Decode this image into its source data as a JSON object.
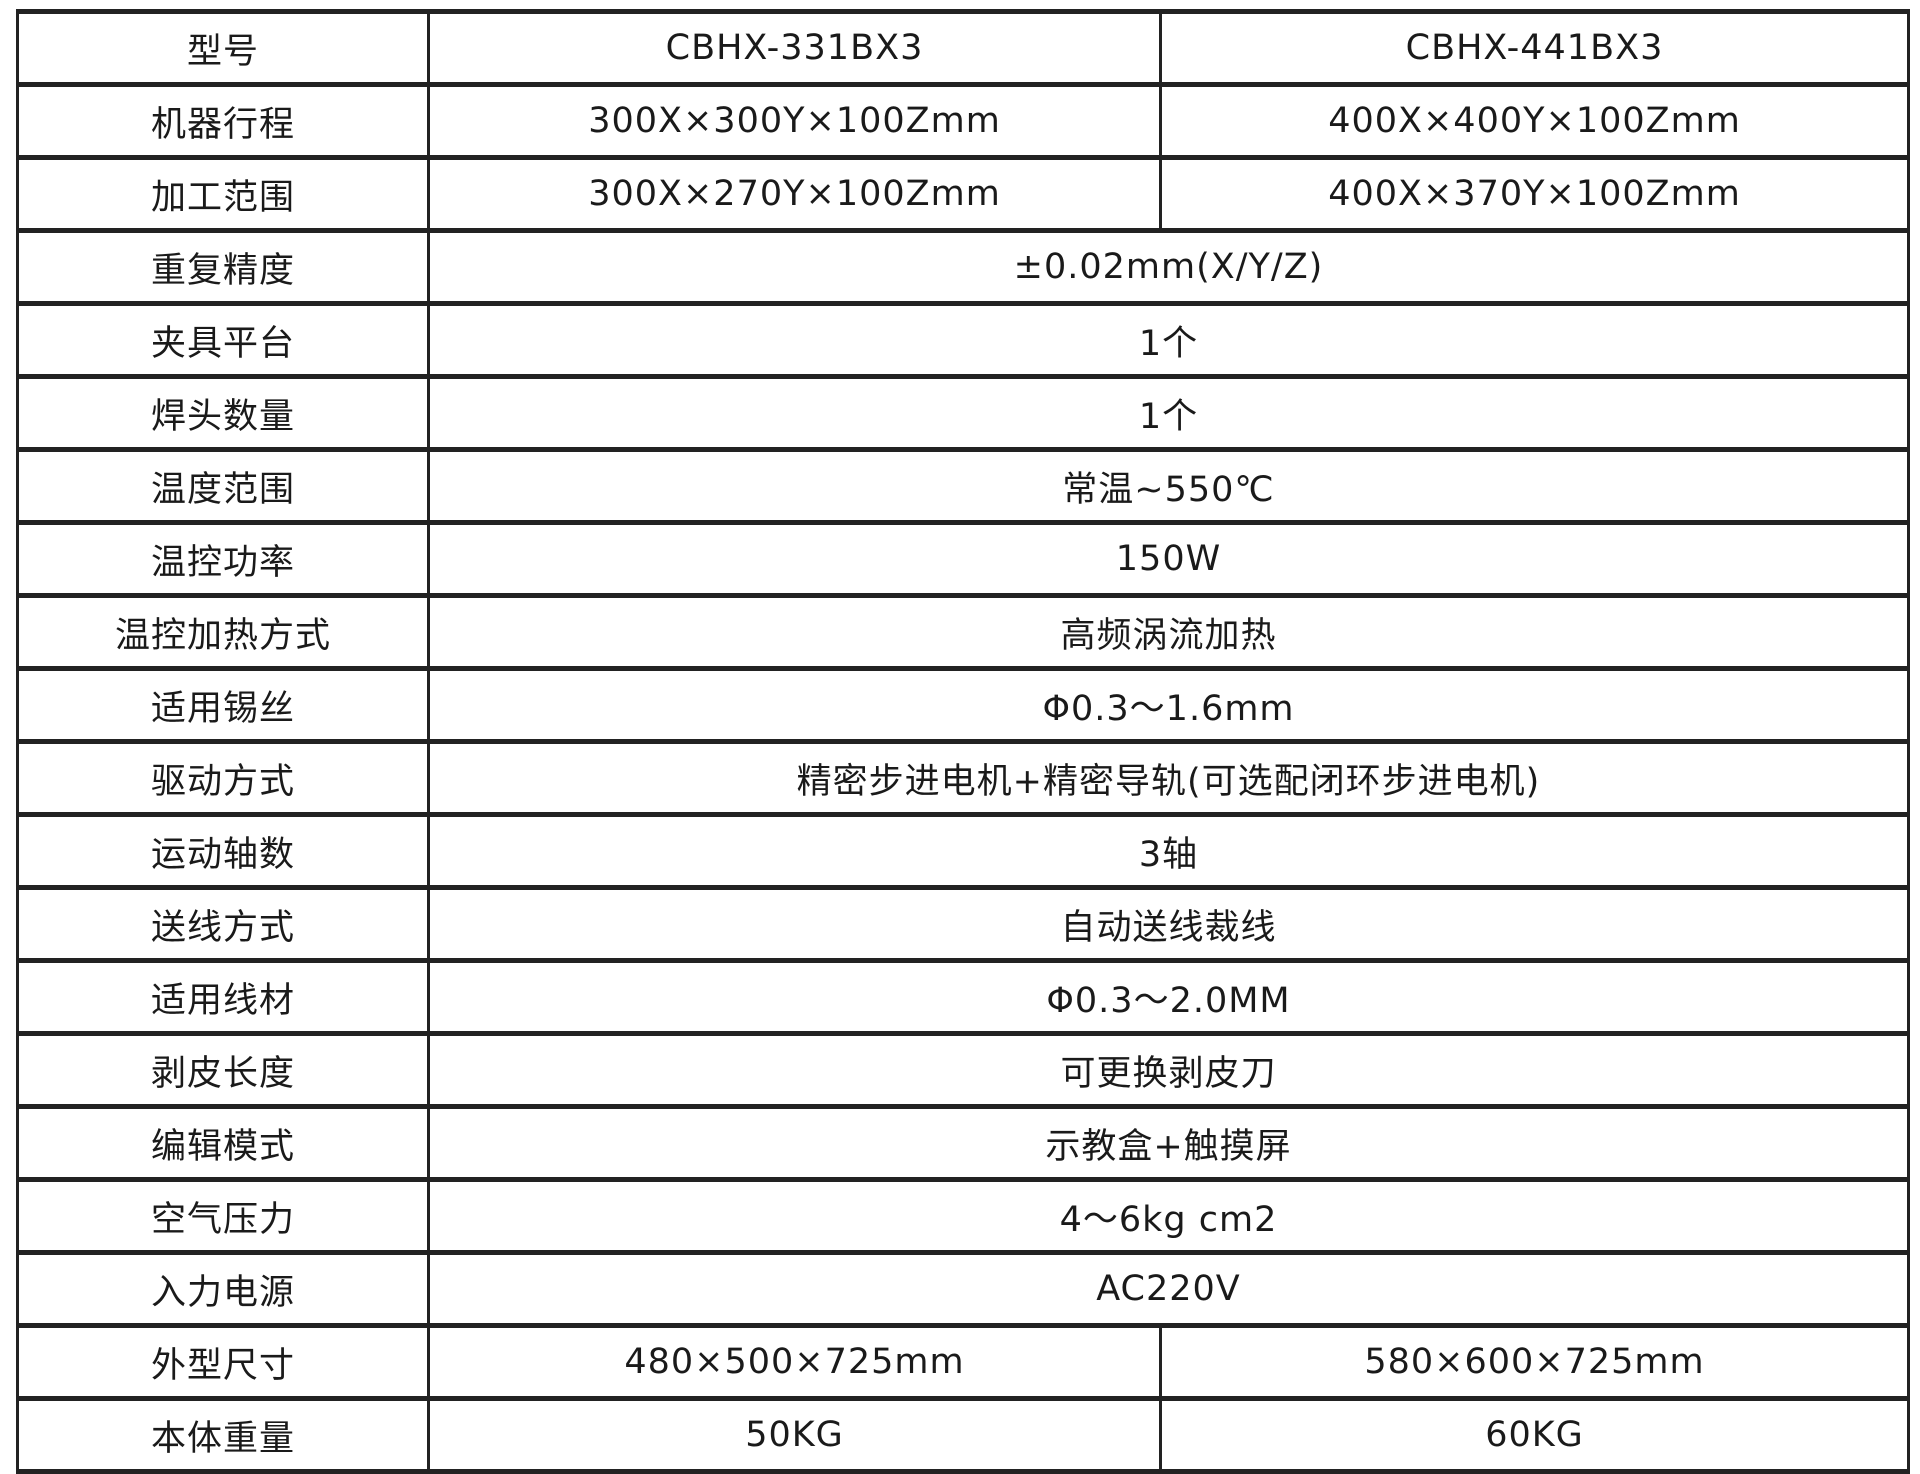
{
  "rows": [
    {
      "label": "型号",
      "values": [
        "CBHX-331BX3",
        "CBHX-441BX3"
      ]
    },
    {
      "label": "机器行程",
      "values": [
        "300X×300Y×100Zmm",
        "400X×400Y×100Zmm"
      ]
    },
    {
      "label": "加工范围",
      "values": [
        "300X×270Y×100Zmm",
        "400X×370Y×100Zmm"
      ]
    },
    {
      "label": "重复精度",
      "values": [
        "±0.02mm(X/Y/Z)"
      ]
    },
    {
      "label": "夹具平台",
      "values": [
        "1个"
      ]
    },
    {
      "label": "焊头数量",
      "values": [
        "1个"
      ]
    },
    {
      "label": "温度范围",
      "values": [
        "常温~550℃"
      ]
    },
    {
      "label": "温控功率",
      "values": [
        "150W"
      ]
    },
    {
      "label": "温控加热方式",
      "values": [
        "高频涡流加热"
      ]
    },
    {
      "label": "适用锡丝",
      "values": [
        "Φ0.3～1.6mm"
      ]
    },
    {
      "label": "驱动方式",
      "values": [
        "精密步进电机+精密导轨(可选配闭环步进电机)"
      ]
    },
    {
      "label": "运动轴数",
      "values": [
        "3轴"
      ]
    },
    {
      "label": "送线方式",
      "values": [
        "自动送线裁线"
      ]
    },
    {
      "label": "适用线材",
      "values": [
        "Φ0.3～2.0MM"
      ]
    },
    {
      "label": "剥皮长度",
      "values": [
        "可更换剥皮刀"
      ]
    },
    {
      "label": "编辑模式",
      "values": [
        "示教盒+触摸屏"
      ]
    },
    {
      "label": "空气压力",
      "values": [
        "4～6kg cm2"
      ]
    },
    {
      "label": "入力电源",
      "values": [
        "AC220V"
      ]
    },
    {
      "label": "外型尺寸",
      "values": [
        "480×500×725mm",
        "580×600×725mm"
      ]
    },
    {
      "label": "本体重量",
      "values": [
        "50KG",
        "60KG"
      ]
    }
  ]
}
